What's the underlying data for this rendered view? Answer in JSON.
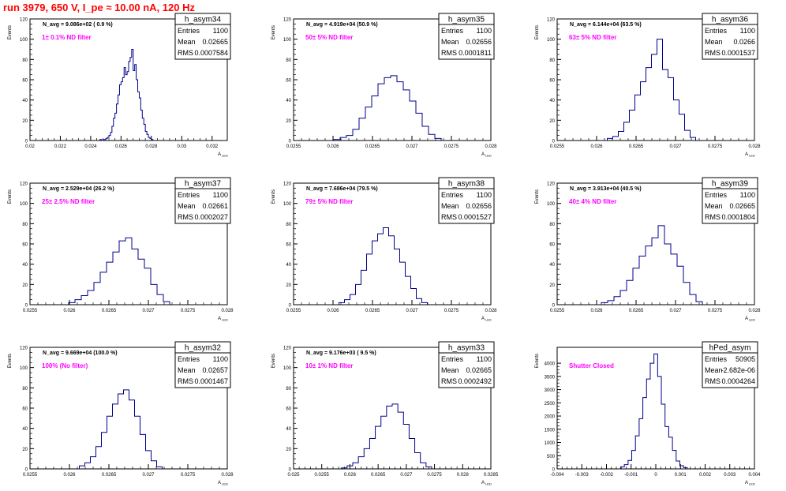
{
  "page_title": "run 3979,   650 V, I_pe ≈ 10.00 nA, 120 Hz",
  "chart_data": [
    {
      "type": "histogram",
      "name": "h_asym34",
      "nav_label": "N_avg = 9.086e+02 ( 0.9 %)",
      "filter_label": "1± 0.1% ND filter",
      "stats": {
        "entries": "1100",
        "mean": "0.02665",
        "rms": "0.0007584"
      },
      "xlabel": "A_LED",
      "ylabel": "Events",
      "xlim": [
        0.02,
        0.033
      ],
      "ylim": [
        0,
        120
      ],
      "xticks": [
        0.02,
        0.022,
        0.024,
        0.026,
        0.028,
        0.03,
        0.032
      ],
      "xtick_labels": [
        "0.02",
        "0.022",
        "0.024",
        "0.026",
        "0.028",
        "0.03",
        "0.032"
      ],
      "yticks": [
        0,
        20,
        40,
        60,
        80,
        100,
        120
      ],
      "ytick_labels": [
        "0",
        "20",
        "40",
        "60",
        "80",
        "100",
        "120"
      ],
      "bin_edges": [
        0.0245,
        0.0248
      ],
      "x": [
        0.02465,
        0.02475,
        0.02485,
        0.02495,
        0.02505,
        0.02515,
        0.02525,
        0.02535,
        0.02545,
        0.02555,
        0.02565,
        0.02575,
        0.02585,
        0.02595,
        0.02605,
        0.02615,
        0.02625,
        0.02635,
        0.02645,
        0.02655,
        0.02665,
        0.02675,
        0.02685,
        0.02695,
        0.02705,
        0.02715,
        0.02725,
        0.02735,
        0.02745,
        0.02755,
        0.02765,
        0.02775,
        0.02785,
        0.02795,
        0.02805
      ],
      "values": [
        1,
        0,
        1,
        1,
        2,
        3,
        5,
        8,
        14,
        22,
        27,
        36,
        45,
        55,
        58,
        62,
        72,
        65,
        68,
        78,
        82,
        90,
        69,
        75,
        60,
        48,
        42,
        30,
        22,
        16,
        9,
        6,
        3,
        2,
        1
      ]
    },
    {
      "type": "histogram",
      "name": "h_asym35",
      "nav_label": "N_avg = 4.919e+04 (50.9 %)",
      "filter_label": "50± 5% ND filter",
      "stats": {
        "entries": "1100",
        "mean": "0.02656",
        "rms": "0.0001811"
      },
      "xlabel": "A_LED",
      "ylabel": "Events",
      "xlim": [
        0.0255,
        0.028
      ],
      "ylim": [
        0,
        120
      ],
      "xticks": [
        0.0255,
        0.026,
        0.0265,
        0.027,
        0.0275,
        0.028
      ],
      "xtick_labels": [
        "0.0255",
        "0.026",
        "0.0265",
        "0.027",
        "0.0275",
        "0.028"
      ],
      "yticks": [
        0,
        20,
        40,
        60,
        80,
        100,
        120
      ],
      "ytick_labels": [
        "0",
        "20",
        "40",
        "60",
        "80",
        "100",
        "120"
      ],
      "x": [
        0.02605,
        0.02613,
        0.02621,
        0.02629,
        0.02637,
        0.02645,
        0.02653,
        0.02661,
        0.02669,
        0.02677,
        0.02685,
        0.02693,
        0.02701,
        0.02709,
        0.02717,
        0.02725,
        0.02733
      ],
      "values": [
        1,
        3,
        5,
        11,
        22,
        33,
        44,
        56,
        62,
        64,
        58,
        50,
        39,
        27,
        14,
        6,
        2
      ]
    },
    {
      "type": "histogram",
      "name": "h_asym36",
      "nav_label": "N_avg = 6.144e+04 (63.5 %)",
      "filter_label": "63± 5% ND filter",
      "stats": {
        "entries": "1100",
        "mean": "0.0266",
        "rms": "0.0001537"
      },
      "xlabel": "A_LED",
      "ylabel": "Events",
      "xlim": [
        0.0255,
        0.028
      ],
      "ylim": [
        0,
        120
      ],
      "xticks": [
        0.0255,
        0.026,
        0.0265,
        0.027,
        0.0275,
        0.028
      ],
      "xtick_labels": [
        "0.0255",
        "0.026",
        "0.0265",
        "0.027",
        "0.0275",
        "0.028"
      ],
      "yticks": [
        0,
        20,
        40,
        60,
        80,
        100,
        120
      ],
      "ytick_labels": [
        "0",
        "20",
        "40",
        "60",
        "80",
        "100",
        "120"
      ],
      "x": [
        0.02617,
        0.02624,
        0.02631,
        0.02638,
        0.02645,
        0.02652,
        0.02659,
        0.02666,
        0.02673,
        0.0268,
        0.02687,
        0.02694,
        0.02701,
        0.02708,
        0.02715,
        0.02722
      ],
      "values": [
        2,
        4,
        9,
        18,
        30,
        45,
        58,
        72,
        85,
        100,
        70,
        62,
        40,
        26,
        10,
        3
      ]
    },
    {
      "type": "histogram",
      "name": "h_asym37",
      "nav_label": "N_avg = 2.529e+04 (26.2 %)",
      "filter_label": "25± 2.5% ND filter",
      "stats": {
        "entries": "1100",
        "mean": "0.02661",
        "rms": "0.0002027"
      },
      "xlabel": "A_LED",
      "ylabel": "Events",
      "xlim": [
        0.0255,
        0.028
      ],
      "ylim": [
        0,
        120
      ],
      "xticks": [
        0.0255,
        0.026,
        0.0265,
        0.027,
        0.0275,
        0.028
      ],
      "xtick_labels": [
        "0.0255",
        "0.026",
        "0.0265",
        "0.027",
        "0.0275",
        "0.028"
      ],
      "yticks": [
        0,
        20,
        40,
        60,
        80,
        100,
        120
      ],
      "ytick_labels": [
        "0",
        "20",
        "40",
        "60",
        "80",
        "100",
        "120"
      ],
      "x": [
        0.02603,
        0.02611,
        0.02619,
        0.02627,
        0.02635,
        0.02643,
        0.02651,
        0.02659,
        0.02667,
        0.02675,
        0.02683,
        0.02691,
        0.02699,
        0.02707,
        0.02715,
        0.02723
      ],
      "values": [
        2,
        5,
        9,
        14,
        22,
        32,
        42,
        52,
        63,
        66,
        55,
        45,
        36,
        20,
        10,
        3
      ]
    },
    {
      "type": "histogram",
      "name": "h_asym38",
      "nav_label": "N_avg = 7.686e+04 (79.5 %)",
      "filter_label": "79± 5% ND filter",
      "stats": {
        "entries": "1100",
        "mean": "0.02656",
        "rms": "0.0001527"
      },
      "xlabel": "A_LED",
      "ylabel": "Events",
      "xlim": [
        0.0255,
        0.028
      ],
      "ylim": [
        0,
        120
      ],
      "xticks": [
        0.0255,
        0.026,
        0.0265,
        0.027,
        0.0275,
        0.028
      ],
      "xtick_labels": [
        "0.0255",
        "0.026",
        "0.0265",
        "0.027",
        "0.0275",
        "0.028"
      ],
      "yticks": [
        0,
        20,
        40,
        60,
        80,
        100,
        120
      ],
      "ytick_labels": [
        "0",
        "20",
        "40",
        "60",
        "80",
        "100",
        "120"
      ],
      "x": [
        0.02611,
        0.02618,
        0.02625,
        0.02632,
        0.02639,
        0.02646,
        0.02653,
        0.0266,
        0.02667,
        0.02674,
        0.02681,
        0.02688,
        0.02695,
        0.02702,
        0.02709,
        0.02716
      ],
      "values": [
        2,
        5,
        10,
        20,
        34,
        50,
        63,
        70,
        76,
        68,
        55,
        42,
        28,
        16,
        6,
        2
      ]
    },
    {
      "type": "histogram",
      "name": "h_asym39",
      "nav_label": "N_avg = 3.913e+04 (40.5 %)",
      "filter_label": "40± 4% ND filter",
      "stats": {
        "entries": "1100",
        "mean": "0.02665",
        "rms": "0.0001804"
      },
      "xlabel": "A_LED",
      "ylabel": "Events",
      "xlim": [
        0.0255,
        0.028
      ],
      "ylim": [
        0,
        120
      ],
      "xticks": [
        0.0255,
        0.026,
        0.0265,
        0.027,
        0.0275,
        0.028
      ],
      "xtick_labels": [
        "0.0255",
        "0.026",
        "0.0265",
        "0.027",
        "0.0275",
        "0.028"
      ],
      "yticks": [
        0,
        20,
        40,
        60,
        80,
        100,
        120
      ],
      "ytick_labels": [
        "0",
        "20",
        "40",
        "60",
        "80",
        "100",
        "120"
      ],
      "x": [
        0.0261,
        0.02618,
        0.02626,
        0.02634,
        0.02642,
        0.0265,
        0.02658,
        0.02666,
        0.02674,
        0.02682,
        0.0269,
        0.02698,
        0.02706,
        0.02714,
        0.02722,
        0.0273
      ],
      "values": [
        2,
        4,
        8,
        14,
        24,
        36,
        48,
        58,
        66,
        78,
        60,
        50,
        38,
        22,
        10,
        3
      ]
    },
    {
      "type": "histogram",
      "name": "h_asym32",
      "nav_label": "N_avg = 9.669e+04 (100.0 %)",
      "filter_label": "100% (No filter)",
      "stats": {
        "entries": "1100",
        "mean": "0.02657",
        "rms": "0.0001467"
      },
      "xlabel": "A_LED",
      "ylabel": "Events",
      "xlim": [
        0.0255,
        0.028
      ],
      "ylim": [
        0,
        120
      ],
      "xticks": [
        0.0255,
        0.026,
        0.0265,
        0.027,
        0.0275,
        0.028
      ],
      "xtick_labels": [
        "0.0255",
        "0.026",
        "0.0265",
        "0.027",
        "0.0275",
        "0.028"
      ],
      "yticks": [
        0,
        20,
        40,
        60,
        80,
        100,
        120
      ],
      "ytick_labels": [
        "0",
        "20",
        "40",
        "60",
        "80",
        "100",
        "120"
      ],
      "x": [
        0.02616,
        0.02623,
        0.0263,
        0.02637,
        0.02644,
        0.02651,
        0.02658,
        0.02665,
        0.02672,
        0.02679,
        0.02686,
        0.02693,
        0.027,
        0.02707,
        0.02714
      ],
      "values": [
        3,
        6,
        12,
        22,
        36,
        52,
        64,
        74,
        78,
        68,
        52,
        34,
        18,
        8,
        2
      ]
    },
    {
      "type": "histogram",
      "name": "h_asym33",
      "nav_label": "N_avg = 9.176e+03 ( 9.5 %)",
      "filter_label": "10± 1% ND filter",
      "stats": {
        "entries": "1100",
        "mean": "0.02665",
        "rms": "0.0002492"
      },
      "xlabel": "A_LED",
      "ylabel": "Events",
      "xlim": [
        0.025,
        0.0285
      ],
      "ylim": [
        0,
        120
      ],
      "xticks": [
        0.025,
        0.0255,
        0.026,
        0.0265,
        0.027,
        0.0275,
        0.028,
        0.0285
      ],
      "xtick_labels": [
        "0.025",
        "0.0255",
        "0.026",
        "0.0265",
        "0.027",
        "0.0275",
        "0.028",
        "0.0285"
      ],
      "yticks": [
        0,
        20,
        40,
        60,
        80,
        100,
        120
      ],
      "ytick_labels": [
        "0",
        "20",
        "40",
        "60",
        "80",
        "100",
        "120"
      ],
      "x": [
        0.0259,
        0.026,
        0.0261,
        0.0262,
        0.0263,
        0.0264,
        0.0265,
        0.0266,
        0.0267,
        0.0268,
        0.0269,
        0.027,
        0.0271,
        0.0272,
        0.0273,
        0.0274
      ],
      "values": [
        1,
        3,
        6,
        12,
        20,
        30,
        42,
        52,
        62,
        64,
        56,
        44,
        30,
        16,
        6,
        2
      ]
    },
    {
      "type": "histogram",
      "name": "hPed_asym",
      "nav_label": "",
      "filter_label": "Shutter Closed",
      "stats": {
        "entries": "50905",
        "mean": "-2.682e-06",
        "rms": "0.0004264"
      },
      "xlabel": "A_LED",
      "ylabel": "Events",
      "xlim": [
        -0.004,
        0.004
      ],
      "ylim": [
        0,
        4600
      ],
      "xticks": [
        -0.004,
        -0.003,
        -0.002,
        -0.001,
        0,
        0.001,
        0.002,
        0.003,
        0.004
      ],
      "xtick_labels": [
        "-0.004",
        "-0.003",
        "-0.002",
        "-0.001",
        "0",
        "0.001",
        "0.002",
        "0.003",
        "0.004"
      ],
      "yticks": [
        0,
        500,
        1000,
        1500,
        2000,
        2500,
        3000,
        3500,
        4000
      ],
      "ytick_labels": [
        "0",
        "500",
        "1000",
        "1500",
        "2000",
        "2500",
        "3000",
        "3500",
        "4000"
      ],
      "x": [
        -0.00135,
        -0.0012,
        -0.00105,
        -0.0009,
        -0.00075,
        -0.0006,
        -0.00045,
        -0.0003,
        -0.00015,
        0.0,
        0.00015,
        0.0003,
        0.00045,
        0.0006,
        0.00075,
        0.0009,
        0.00105,
        0.0012
      ],
      "values": [
        80,
        160,
        320,
        700,
        1250,
        1900,
        2700,
        3400,
        4000,
        4350,
        3500,
        2450,
        1600,
        1200,
        700,
        300,
        120,
        50
      ]
    }
  ]
}
